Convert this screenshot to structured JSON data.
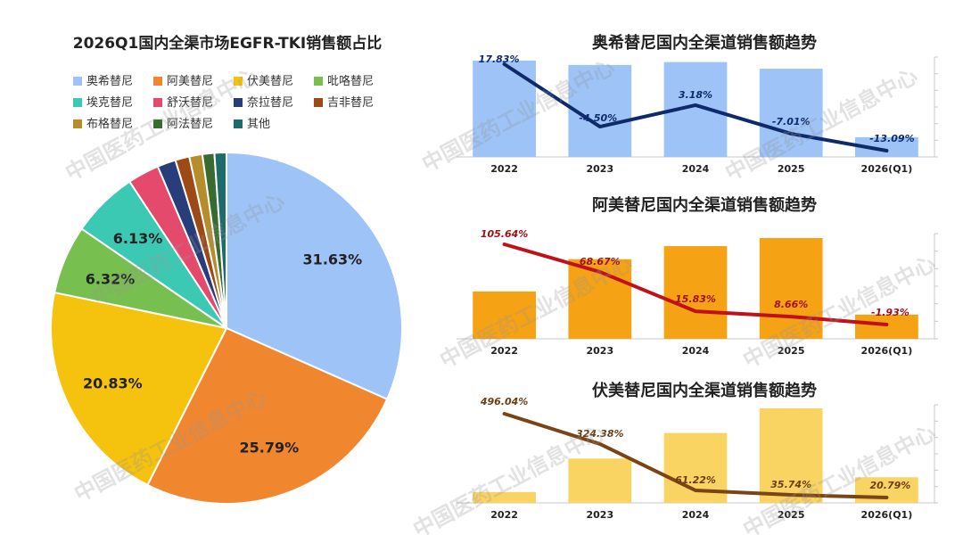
{
  "watermark": "中国医药工业信息中心",
  "chart_data": [
    {
      "type": "pie",
      "title": "2026Q1国内全渠市场EGFR-TKI销售额占比",
      "legend_placement": "top",
      "slices": [
        {
          "name": "奥希替尼",
          "value": 31.63,
          "label": "31.63%",
          "color": "#9dc3f7"
        },
        {
          "name": "阿美替尼",
          "value": 25.79,
          "label": "25.79%",
          "color": "#f0872e"
        },
        {
          "name": "伏美替尼",
          "value": 20.83,
          "label": "20.83%",
          "color": "#f5c20d"
        },
        {
          "name": "吡咯替尼",
          "value": 6.32,
          "label": "6.32%",
          "color": "#77bf4f"
        },
        {
          "name": "埃克替尼",
          "value": 6.13,
          "label": "6.13%",
          "color": "#3cc9b4"
        },
        {
          "name": "舒沃替尼",
          "value": 2.9,
          "label": "",
          "color": "#e5496b"
        },
        {
          "name": "奈拉替尼",
          "value": 1.7,
          "label": "",
          "color": "#283d7a"
        },
        {
          "name": "吉非替尼",
          "value": 1.3,
          "label": "",
          "color": "#9e4a17"
        },
        {
          "name": "布格替尼",
          "value": 1.2,
          "label": "",
          "color": "#b58d2a"
        },
        {
          "name": "阿法替尼",
          "value": 1.1,
          "label": "",
          "color": "#376b2f"
        },
        {
          "name": "其他",
          "value": 1.1,
          "label": "",
          "color": "#1d6b6b"
        }
      ]
    },
    {
      "type": "bar",
      "title": "奥希替尼国内全渠道销售额趋势",
      "categories": [
        "2022",
        "2023",
        "2024",
        "2025",
        "2026(Q1)"
      ],
      "bar_values": [
        100,
        95.5,
        98.5,
        91.6,
        20.5
      ],
      "growth": [
        17.83,
        -4.5,
        3.18,
        -7.01,
        -13.09
      ],
      "growth_labels": [
        "17.83%",
        "-4.50%",
        "3.18%",
        "-7.01%",
        "-13.09%"
      ],
      "bar_color": "#9dc3f7",
      "line_color": "#0e2a6b",
      "label_color": "#0e2a6b"
    },
    {
      "type": "bar",
      "title": "阿美替尼国内全渠道销售额趋势",
      "categories": [
        "2022",
        "2023",
        "2024",
        "2025",
        "2026(Q1)"
      ],
      "bar_values": [
        47,
        79,
        92,
        100,
        24
      ],
      "growth": [
        105.64,
        68.67,
        15.83,
        8.66,
        -1.93
      ],
      "growth_labels": [
        "105.64%",
        "68.67%",
        "15.83%",
        "8.66%",
        "-1.93%"
      ],
      "bar_color": "#f5a214",
      "line_color": "#c0101a",
      "label_color": "#a01018"
    },
    {
      "type": "bar",
      "title": "伏美替尼国内全渠道销售额趋势",
      "categories": [
        "2022",
        "2023",
        "2024",
        "2025",
        "2026(Q1)"
      ],
      "bar_values": [
        11,
        45,
        71,
        96,
        26
      ],
      "growth": [
        496.04,
        324.38,
        61.22,
        35.74,
        20.79
      ],
      "growth_labels": [
        "496.04%",
        "324.38%",
        "61.22%",
        "35.74%",
        "20.79%"
      ],
      "bar_color": "#fad462",
      "line_color": "#7a4416",
      "label_color": "#6b3d12"
    }
  ]
}
